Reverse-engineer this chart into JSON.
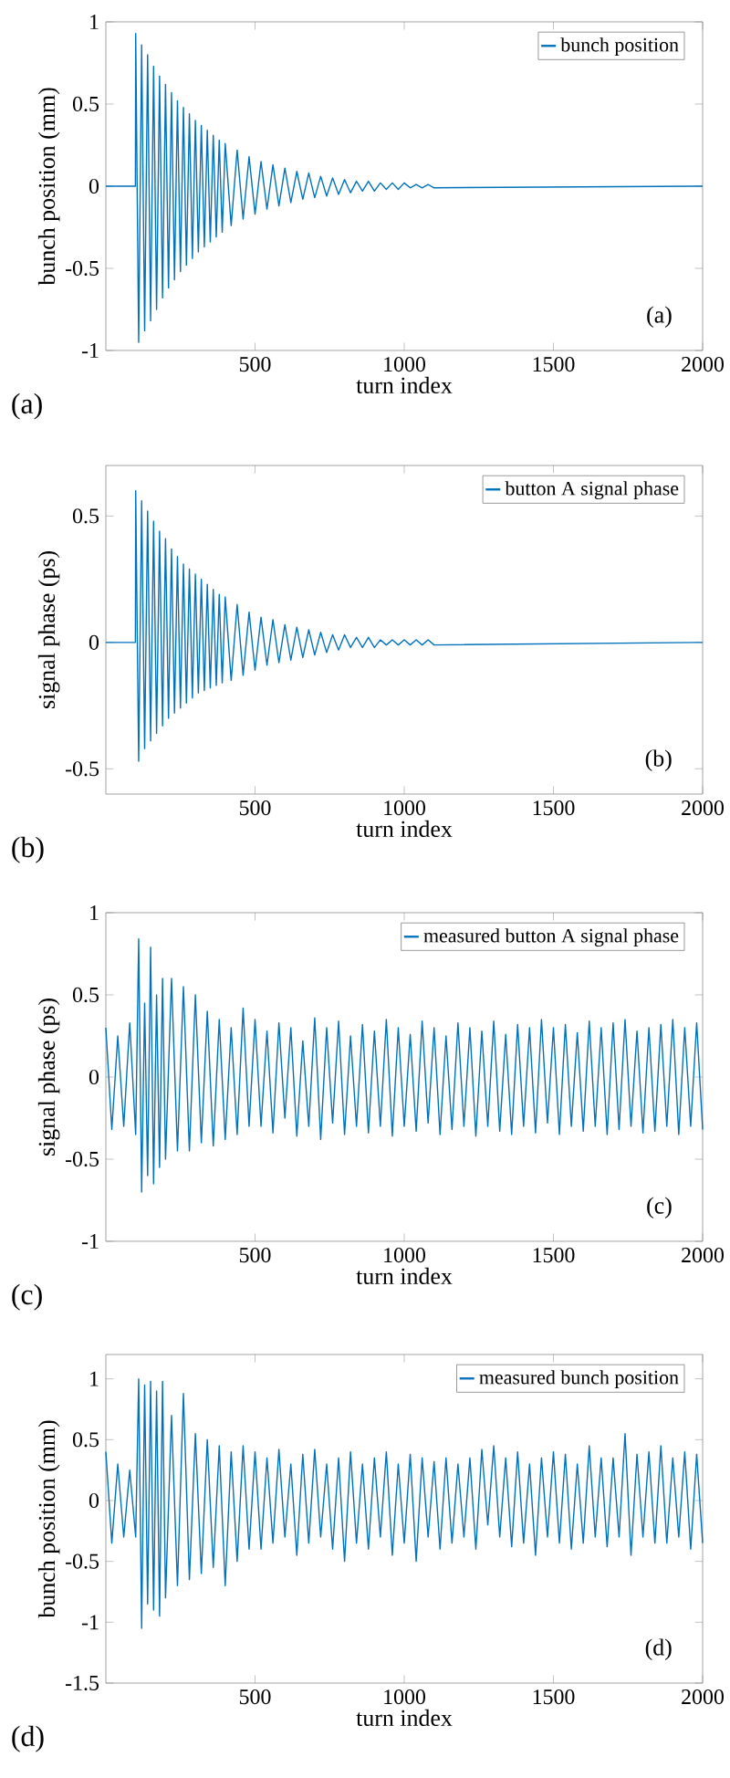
{
  "chart_data": [
    {
      "type": "line",
      "xlabel": "turn index",
      "ylabel": "bunch position (mm)",
      "xlim": [
        0,
        2000
      ],
      "xticks": [
        500,
        1000,
        1500,
        2000
      ],
      "ylim": [
        -1,
        1
      ],
      "yticks": [
        -1,
        -0.5,
        0,
        0.5,
        1
      ],
      "legend": "top right",
      "marker": "none",
      "annotations": [
        "(a)",
        "(a)"
      ],
      "series": [
        {
          "name": "bunch position",
          "color": "#0072bd",
          "x": [
            0,
            99,
            100,
            110,
            120,
            130,
            140,
            150,
            160,
            170,
            180,
            190,
            200,
            210,
            220,
            230,
            240,
            250,
            260,
            270,
            280,
            290,
            300,
            310,
            320,
            330,
            340,
            350,
            360,
            370,
            380,
            390,
            400,
            420,
            440,
            460,
            480,
            500,
            520,
            540,
            560,
            580,
            600,
            620,
            640,
            660,
            680,
            700,
            720,
            740,
            760,
            780,
            800,
            820,
            840,
            860,
            880,
            900,
            920,
            940,
            960,
            980,
            1000,
            1020,
            1040,
            1060,
            1080,
            1100,
            2000
          ],
          "values": [
            0,
            0,
            0.93,
            -0.95,
            0.86,
            -0.88,
            0.8,
            -0.82,
            0.73,
            -0.75,
            0.67,
            -0.68,
            0.62,
            -0.62,
            0.57,
            -0.57,
            0.52,
            -0.52,
            0.48,
            -0.48,
            0.44,
            -0.44,
            0.4,
            -0.4,
            0.37,
            -0.37,
            0.34,
            -0.34,
            0.31,
            -0.31,
            0.28,
            -0.28,
            0.26,
            -0.24,
            0.22,
            -0.2,
            0.18,
            -0.17,
            0.15,
            -0.14,
            0.13,
            -0.12,
            0.11,
            -0.1,
            0.09,
            -0.08,
            0.08,
            -0.07,
            0.06,
            -0.06,
            0.05,
            -0.05,
            0.04,
            -0.04,
            0.03,
            -0.03,
            0.03,
            -0.03,
            0.02,
            -0.02,
            0.02,
            -0.02,
            0.02,
            -0.01,
            0.01,
            -0.01,
            0.01,
            -0.01,
            0
          ]
        }
      ]
    },
    {
      "type": "line",
      "xlabel": "turn index",
      "ylabel": "signal phase (ps)",
      "xlim": [
        0,
        2000
      ],
      "xticks": [
        500,
        1000,
        1500,
        2000
      ],
      "ylim": [
        -0.6,
        0.7
      ],
      "yticks": [
        -0.5,
        0,
        0.5
      ],
      "legend": "top right",
      "marker": "none",
      "annotations": [
        "(b)",
        "(b)"
      ],
      "series": [
        {
          "name": "button A signal phase",
          "color": "#0072bd",
          "x": [
            0,
            99,
            100,
            110,
            120,
            130,
            140,
            150,
            160,
            170,
            180,
            190,
            200,
            210,
            220,
            230,
            240,
            250,
            260,
            270,
            280,
            290,
            300,
            310,
            320,
            330,
            340,
            350,
            360,
            370,
            380,
            390,
            400,
            420,
            440,
            460,
            480,
            500,
            520,
            540,
            560,
            580,
            600,
            620,
            640,
            660,
            680,
            700,
            720,
            740,
            760,
            780,
            800,
            820,
            840,
            860,
            880,
            900,
            920,
            940,
            960,
            980,
            1000,
            1020,
            1040,
            1060,
            1080,
            1100,
            2000
          ],
          "values": [
            0,
            0,
            0.6,
            -0.47,
            0.56,
            -0.42,
            0.52,
            -0.39,
            0.48,
            -0.36,
            0.44,
            -0.33,
            0.41,
            -0.3,
            0.37,
            -0.28,
            0.34,
            -0.26,
            0.31,
            -0.24,
            0.29,
            -0.22,
            0.27,
            -0.2,
            0.25,
            -0.19,
            0.23,
            -0.18,
            0.21,
            -0.17,
            0.19,
            -0.16,
            0.18,
            -0.15,
            0.15,
            -0.13,
            0.12,
            -0.11,
            0.1,
            -0.09,
            0.09,
            -0.08,
            0.07,
            -0.07,
            0.06,
            -0.06,
            0.05,
            -0.05,
            0.04,
            -0.04,
            0.03,
            -0.03,
            0.03,
            -0.02,
            0.02,
            -0.02,
            0.02,
            -0.02,
            0.01,
            -0.01,
            0.01,
            -0.01,
            0.01,
            -0.01,
            0.01,
            -0.01,
            0.01,
            -0.01,
            0
          ]
        }
      ]
    },
    {
      "type": "line",
      "xlabel": "turn index",
      "ylabel": "signal phase (ps)",
      "xlim": [
        0,
        2000
      ],
      "xticks": [
        500,
        1000,
        1500,
        2000
      ],
      "ylim": [
        -1,
        1
      ],
      "yticks": [
        -1,
        -0.5,
        0,
        0.5,
        1
      ],
      "legend": "top right",
      "marker": "none",
      "annotations": [
        "(c)",
        "(c)"
      ],
      "series": [
        {
          "name": "measured button A signal phase",
          "color": "#0072bd",
          "x": [
            0,
            20,
            40,
            60,
            80,
            100,
            110,
            120,
            130,
            140,
            150,
            160,
            170,
            180,
            190,
            200,
            220,
            240,
            260,
            280,
            300,
            320,
            340,
            360,
            380,
            400,
            420,
            440,
            460,
            480,
            500,
            520,
            540,
            560,
            580,
            600,
            620,
            640,
            660,
            680,
            700,
            720,
            740,
            760,
            780,
            800,
            820,
            840,
            860,
            880,
            900,
            920,
            940,
            960,
            980,
            1000,
            1020,
            1040,
            1060,
            1080,
            1100,
            1120,
            1140,
            1160,
            1180,
            1200,
            1220,
            1240,
            1260,
            1280,
            1300,
            1320,
            1340,
            1360,
            1380,
            1400,
            1420,
            1440,
            1460,
            1480,
            1500,
            1520,
            1540,
            1560,
            1580,
            1600,
            1620,
            1640,
            1660,
            1680,
            1700,
            1720,
            1740,
            1760,
            1780,
            1800,
            1820,
            1840,
            1860,
            1880,
            1900,
            1920,
            1940,
            1960,
            1980,
            2000
          ],
          "values": [
            0.3,
            -0.32,
            0.25,
            -0.3,
            0.33,
            -0.35,
            0.84,
            -0.7,
            0.45,
            -0.6,
            0.79,
            -0.65,
            0.5,
            -0.55,
            0.6,
            -0.5,
            0.6,
            -0.45,
            0.55,
            -0.45,
            0.5,
            -0.4,
            0.4,
            -0.42,
            0.35,
            -0.38,
            0.3,
            -0.35,
            0.42,
            -0.3,
            0.35,
            -0.3,
            0.28,
            -0.34,
            0.33,
            -0.25,
            0.3,
            -0.36,
            0.22,
            -0.3,
            0.36,
            -0.38,
            0.3,
            -0.28,
            0.34,
            -0.35,
            0.25,
            -0.3,
            0.32,
            -0.34,
            0.28,
            -0.3,
            0.35,
            -0.36,
            0.3,
            -0.3,
            0.26,
            -0.33,
            0.34,
            -0.28,
            0.3,
            -0.35,
            0.25,
            -0.32,
            0.33,
            -0.3,
            0.3,
            -0.36,
            0.28,
            -0.3,
            0.34,
            -0.33,
            0.26,
            -0.35,
            0.32,
            -0.3,
            0.3,
            -0.34,
            0.35,
            -0.28,
            0.3,
            -0.35,
            0.32,
            -0.3,
            0.27,
            -0.33,
            0.34,
            -0.3,
            0.3,
            -0.35,
            0.33,
            -0.32,
            0.35,
            -0.3,
            0.28,
            -0.34,
            0.3,
            -0.33,
            0.32,
            -0.3,
            0.35,
            -0.35,
            0.3,
            -0.3,
            0.33,
            -0.32
          ]
        }
      ]
    },
    {
      "type": "line",
      "xlabel": "turn index",
      "ylabel": "bunch position (mm)",
      "xlim": [
        0,
        2000
      ],
      "xticks": [
        500,
        1000,
        1500,
        2000
      ],
      "ylim": [
        -1.5,
        1.2
      ],
      "yticks": [
        -1.5,
        -1,
        -0.5,
        0,
        0.5,
        1
      ],
      "legend": "top right",
      "marker": "none",
      "annotations": [
        "(d)",
        "(d)"
      ],
      "series": [
        {
          "name": "measured bunch position",
          "color": "#0072bd",
          "x": [
            0,
            20,
            40,
            60,
            80,
            100,
            110,
            120,
            130,
            140,
            150,
            160,
            170,
            180,
            190,
            200,
            220,
            240,
            260,
            280,
            300,
            320,
            340,
            360,
            380,
            400,
            420,
            440,
            460,
            480,
            500,
            520,
            540,
            560,
            580,
            600,
            620,
            640,
            660,
            680,
            700,
            720,
            740,
            760,
            780,
            800,
            820,
            840,
            860,
            880,
            900,
            920,
            940,
            960,
            980,
            1000,
            1020,
            1040,
            1060,
            1080,
            1100,
            1120,
            1140,
            1160,
            1180,
            1200,
            1220,
            1240,
            1260,
            1280,
            1300,
            1320,
            1340,
            1360,
            1380,
            1400,
            1420,
            1440,
            1460,
            1480,
            1500,
            1520,
            1540,
            1560,
            1580,
            1600,
            1620,
            1640,
            1660,
            1680,
            1700,
            1720,
            1740,
            1760,
            1780,
            1800,
            1820,
            1840,
            1860,
            1880,
            1900,
            1920,
            1940,
            1960,
            1980,
            2000
          ],
          "values": [
            0.4,
            -0.35,
            0.3,
            -0.3,
            0.25,
            -0.3,
            1.0,
            -1.05,
            0.95,
            -0.85,
            0.98,
            -0.9,
            0.9,
            -0.95,
            0.98,
            -0.8,
            0.7,
            -0.7,
            0.88,
            -0.65,
            0.55,
            -0.6,
            0.5,
            -0.55,
            0.45,
            -0.7,
            0.4,
            -0.5,
            0.45,
            -0.4,
            0.4,
            -0.4,
            0.35,
            -0.35,
            0.42,
            -0.3,
            0.3,
            -0.45,
            0.38,
            -0.35,
            0.42,
            -0.3,
            0.3,
            -0.4,
            0.35,
            -0.5,
            0.4,
            -0.35,
            0.3,
            -0.4,
            0.35,
            -0.3,
            0.4,
            -0.45,
            0.3,
            -0.35,
            0.38,
            -0.5,
            0.35,
            -0.3,
            0.32,
            -0.4,
            0.35,
            -0.35,
            0.3,
            -0.3,
            0.35,
            -0.4,
            0.42,
            -0.2,
            0.45,
            -0.3,
            0.35,
            -0.38,
            0.4,
            -0.35,
            0.3,
            -0.45,
            0.35,
            -0.3,
            0.4,
            -0.35,
            0.38,
            -0.4,
            0.3,
            -0.35,
            0.45,
            -0.3,
            0.35,
            -0.38,
            0.35,
            -0.3,
            0.55,
            -0.45,
            0.38,
            -0.3,
            0.4,
            -0.35,
            0.45,
            -0.35,
            0.35,
            -0.3,
            0.4,
            -0.4,
            0.38,
            -0.35
          ]
        }
      ]
    }
  ]
}
